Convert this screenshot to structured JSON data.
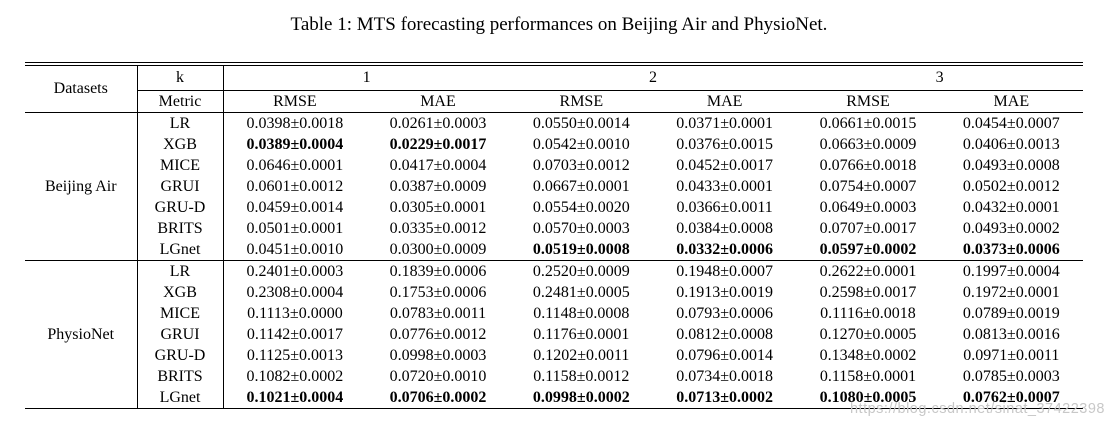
{
  "caption": "Table 1: MTS forecasting performances on Beijing Air and PhysioNet.",
  "watermark": "https://blog.csdn.net/sinat_37422398",
  "colors": {
    "text": "#000000",
    "border": "#000000",
    "background": "#ffffff",
    "watermark": "#c8c8c8"
  },
  "table": {
    "header": {
      "datasets_label": "Datasets",
      "k_label": "k",
      "metric_label": "Metric",
      "k_groups": [
        "1",
        "2",
        "3"
      ],
      "metrics": [
        "RMSE",
        "MAE",
        "RMSE",
        "MAE",
        "RMSE",
        "MAE"
      ]
    },
    "sections": [
      {
        "dataset": "Beijing Air",
        "rows": [
          {
            "method": "LR",
            "values": [
              "0.0398±0.0018",
              "0.0261±0.0003",
              "0.0550±0.0014",
              "0.0371±0.0001",
              "0.0661±0.0015",
              "0.0454±0.0007"
            ],
            "bold": []
          },
          {
            "method": "XGB",
            "values": [
              "0.0389±0.0004",
              "0.0229±0.0017",
              "0.0542±0.0010",
              "0.0376±0.0015",
              "0.0663±0.0009",
              "0.0406±0.0013"
            ],
            "bold": [
              0,
              1
            ]
          },
          {
            "method": "MICE",
            "values": [
              "0.0646±0.0001",
              "0.0417±0.0004",
              "0.0703±0.0012",
              "0.0452±0.0017",
              "0.0766±0.0018",
              "0.0493±0.0008"
            ],
            "bold": []
          },
          {
            "method": "GRUI",
            "values": [
              "0.0601±0.0012",
              "0.0387±0.0009",
              "0.0667±0.0001",
              "0.0433±0.0001",
              "0.0754±0.0007",
              "0.0502±0.0012"
            ],
            "bold": []
          },
          {
            "method": "GRU-D",
            "values": [
              "0.0459±0.0014",
              "0.0305±0.0001",
              "0.0554±0.0020",
              "0.0366±0.0011",
              "0.0649±0.0003",
              "0.0432±0.0001"
            ],
            "bold": []
          },
          {
            "method": "BRITS",
            "values": [
              "0.0501±0.0001",
              "0.0335±0.0012",
              "0.0570±0.0003",
              "0.0384±0.0008",
              "0.0707±0.0017",
              "0.0493±0.0002"
            ],
            "bold": []
          },
          {
            "method": "LGnet",
            "values": [
              "0.0451±0.0010",
              "0.0300±0.0009",
              "0.0519±0.0008",
              "0.0332±0.0006",
              "0.0597±0.0002",
              "0.0373±0.0006"
            ],
            "bold": [
              2,
              3,
              4,
              5
            ]
          }
        ]
      },
      {
        "dataset": "PhysioNet",
        "rows": [
          {
            "method": "LR",
            "values": [
              "0.2401±0.0003",
              "0.1839±0.0006",
              "0.2520±0.0009",
              "0.1948±0.0007",
              "0.2622±0.0001",
              "0.1997±0.0004"
            ],
            "bold": []
          },
          {
            "method": "XGB",
            "values": [
              "0.2308±0.0004",
              "0.1753±0.0006",
              "0.2481±0.0005",
              "0.1913±0.0019",
              "0.2598±0.0017",
              "0.1972±0.0001"
            ],
            "bold": []
          },
          {
            "method": "MICE",
            "values": [
              "0.1113±0.0000",
              "0.0783±0.0011",
              "0.1148±0.0008",
              "0.0793±0.0006",
              "0.1116±0.0018",
              "0.0789±0.0019"
            ],
            "bold": []
          },
          {
            "method": "GRUI",
            "values": [
              "0.1142±0.0017",
              "0.0776±0.0012",
              "0.1176±0.0001",
              "0.0812±0.0008",
              "0.1270±0.0005",
              "0.0813±0.0016"
            ],
            "bold": []
          },
          {
            "method": "GRU-D",
            "values": [
              "0.1125±0.0013",
              "0.0998±0.0003",
              "0.1202±0.0011",
              "0.0796±0.0014",
              "0.1348±0.0002",
              "0.0971±0.0011"
            ],
            "bold": []
          },
          {
            "method": "BRITS",
            "values": [
              "0.1082±0.0002",
              "0.0720±0.0010",
              "0.1158±0.0012",
              "0.0734±0.0018",
              "0.1158±0.0001",
              "0.0785±0.0003"
            ],
            "bold": []
          },
          {
            "method": "LGnet",
            "values": [
              "0.1021±0.0004",
              "0.0706±0.0002",
              "0.0998±0.0002",
              "0.0713±0.0002",
              "0.1080±0.0005",
              "0.0762±0.0007"
            ],
            "bold": [
              0,
              1,
              2,
              3,
              4,
              5
            ]
          }
        ]
      }
    ]
  }
}
